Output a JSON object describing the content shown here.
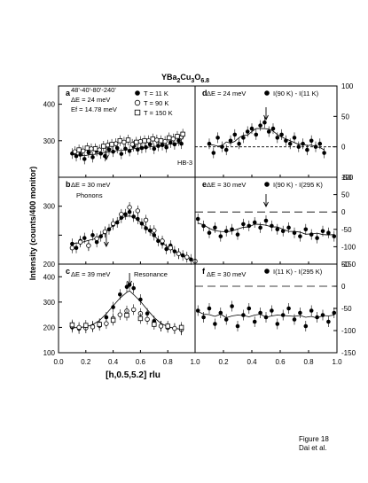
{
  "figure": {
    "title_main": "YBa",
    "title_sub1": "2",
    "title_mid": "Cu",
    "title_sub2": "3",
    "title_end": "O",
    "title_sub3": "6.8",
    "xlabel": "[h,0.5,5.2] rlu",
    "ylabel": "Intensity (counts/400 monitor)",
    "caption_line1": "Figure 18",
    "caption_line2": "Dai et al."
  },
  "chart_data": [
    {
      "panel": "a",
      "type": "scatter",
      "xlim": [
        0,
        1.0
      ],
      "ylim": [
        200,
        450
      ],
      "yticks": [
        200,
        300,
        400
      ],
      "ytick_labels": [
        "",
        "300",
        "400"
      ],
      "grid": false,
      "annotations": [
        "48'-40'-80'-240'",
        "ΔE = 24 meV",
        "Ef = 14.78 meV",
        "HB-3"
      ],
      "legend": [
        {
          "marker": "filled-circle",
          "label": "T = 11 K"
        },
        {
          "marker": "open-circle",
          "label": "T = 90 K"
        },
        {
          "marker": "open-square",
          "label": "T = 150 K"
        }
      ],
      "arrow_x": 0.35,
      "series": [
        {
          "name": "T = 11 K",
          "marker": "filled-circle",
          "x": [
            0.1,
            0.13,
            0.16,
            0.19,
            0.22,
            0.25,
            0.28,
            0.31,
            0.34,
            0.37,
            0.4,
            0.43,
            0.46,
            0.49,
            0.52,
            0.55,
            0.58,
            0.61,
            0.64,
            0.67,
            0.7,
            0.73,
            0.76,
            0.79,
            0.82,
            0.85,
            0.88,
            0.9
          ],
          "y": [
            265,
            258,
            262,
            250,
            268,
            255,
            272,
            265,
            258,
            276,
            270,
            280,
            264,
            278,
            272,
            285,
            276,
            280,
            282,
            290,
            278,
            286,
            288,
            282,
            295,
            290,
            300,
            292
          ]
        },
        {
          "name": "T = 90 K",
          "marker": "open-circle",
          "x": [
            0.12,
            0.18,
            0.24,
            0.3,
            0.36,
            0.42,
            0.48,
            0.54,
            0.6,
            0.66,
            0.72,
            0.78,
            0.84,
            0.9
          ],
          "y": [
            270,
            272,
            278,
            275,
            288,
            292,
            296,
            290,
            298,
            300,
            302,
            298,
            305,
            310
          ]
        },
        {
          "name": "T = 150 K",
          "marker": "open-square",
          "x": [
            0.15,
            0.21,
            0.27,
            0.33,
            0.39,
            0.45,
            0.51,
            0.57,
            0.63,
            0.69,
            0.75,
            0.81,
            0.87,
            0.91
          ],
          "y": [
            275,
            280,
            278,
            285,
            290,
            300,
            302,
            296,
            300,
            305,
            300,
            308,
            312,
            318
          ]
        }
      ]
    },
    {
      "panel": "b",
      "type": "scatter",
      "xlim": [
        0,
        1.0
      ],
      "ylim": [
        200,
        350
      ],
      "yticks": [
        200,
        250,
        300
      ],
      "ytick_labels": [
        "200",
        "",
        "300"
      ],
      "grid": false,
      "annotations": [
        "ΔE = 30 meV",
        "Phonons"
      ],
      "arrow_x": 0.35,
      "series": [
        {
          "name": "T = 11 K",
          "marker": "filled-circle",
          "x": [
            0.1,
            0.13,
            0.16,
            0.19,
            0.22,
            0.25,
            0.28,
            0.31,
            0.34,
            0.37,
            0.4,
            0.43,
            0.46,
            0.49,
            0.52,
            0.55,
            0.58,
            0.61,
            0.64,
            0.67,
            0.7,
            0.73,
            0.76,
            0.79,
            0.82,
            0.85,
            0.88,
            0.91,
            0.94,
            0.97
          ],
          "y": [
            235,
            228,
            240,
            245,
            232,
            250,
            238,
            248,
            255,
            260,
            268,
            272,
            280,
            286,
            290,
            282,
            278,
            270,
            262,
            258,
            250,
            240,
            236,
            226,
            232,
            222,
            218,
            215,
            212,
            208
          ]
        },
        {
          "name": "T = 90 K",
          "marker": "open-circle",
          "x": [
            0.1,
            0.16,
            0.22,
            0.28,
            0.34,
            0.4,
            0.46,
            0.52,
            0.58,
            0.64,
            0.7,
            0.76,
            0.82,
            0.88,
            0.94,
            1.0
          ],
          "y": [
            228,
            238,
            232,
            244,
            256,
            270,
            286,
            298,
            292,
            276,
            258,
            240,
            228,
            218,
            212,
            205
          ]
        }
      ]
    },
    {
      "panel": "c",
      "type": "scatter",
      "xlim": [
        0,
        1.0
      ],
      "ylim": [
        100,
        450
      ],
      "yticks": [
        100,
        200,
        300,
        400
      ],
      "ytick_labels": [
        "100",
        "200",
        "300",
        "400"
      ],
      "grid": false,
      "annotations": [
        "ΔE = 39 meV",
        "Resonance"
      ],
      "arrow_x": 0.52,
      "series": [
        {
          "name": "T = 11 K",
          "marker": "filled-circle",
          "x": [
            0.1,
            0.15,
            0.2,
            0.25,
            0.3,
            0.35,
            0.4,
            0.45,
            0.5,
            0.52,
            0.55,
            0.6,
            0.65,
            0.7,
            0.75,
            0.8,
            0.85,
            0.9
          ],
          "y": [
            200,
            195,
            198,
            205,
            215,
            240,
            280,
            330,
            360,
            368,
            355,
            310,
            255,
            225,
            205,
            200,
            195,
            190
          ]
        },
        {
          "name": "T = 90 K",
          "marker": "open-circle",
          "x": [
            0.1,
            0.15,
            0.2,
            0.25,
            0.3,
            0.35,
            0.4,
            0.45,
            0.5,
            0.55,
            0.6,
            0.65,
            0.7,
            0.75,
            0.8,
            0.85,
            0.9
          ],
          "y": [
            205,
            200,
            198,
            202,
            208,
            215,
            235,
            250,
            265,
            270,
            255,
            232,
            215,
            205,
            200,
            196,
            192
          ]
        },
        {
          "name": "T = 150 K",
          "marker": "open-square",
          "x": [
            0.1,
            0.2,
            0.3,
            0.4,
            0.5,
            0.6,
            0.7,
            0.8,
            0.9
          ],
          "y": [
            210,
            208,
            212,
            228,
            248,
            235,
            212,
            205,
            200
          ]
        }
      ]
    },
    {
      "panel": "d",
      "type": "scatter",
      "xlim": [
        0,
        1.0
      ],
      "ylim": [
        -50,
        100
      ],
      "yticks": [
        -50,
        0,
        50,
        100
      ],
      "ytick_labels": [
        "-50",
        "0",
        "50",
        "100"
      ],
      "grid": false,
      "annotations": [
        "ΔE = 24 meV"
      ],
      "legend": [
        {
          "marker": "filled-circle",
          "label": "I(90 K) - I(11 K)"
        }
      ],
      "arrow_x": 0.5,
      "series": [
        {
          "name": "I(90 K) - I(11 K)",
          "marker": "filled-circle",
          "x": [
            0.1,
            0.13,
            0.16,
            0.19,
            0.22,
            0.25,
            0.28,
            0.31,
            0.34,
            0.37,
            0.4,
            0.43,
            0.46,
            0.49,
            0.52,
            0.55,
            0.58,
            0.61,
            0.64,
            0.67,
            0.7,
            0.73,
            0.76,
            0.79,
            0.82,
            0.85,
            0.88,
            0.91
          ],
          "y": [
            5,
            -10,
            15,
            0,
            -5,
            10,
            20,
            5,
            15,
            25,
            30,
            20,
            35,
            40,
            25,
            30,
            15,
            20,
            10,
            5,
            15,
            0,
            5,
            -5,
            10,
            0,
            5,
            -10
          ]
        }
      ]
    },
    {
      "panel": "e",
      "type": "scatter",
      "xlim": [
        0,
        1.0
      ],
      "ylim": [
        -150,
        100
      ],
      "yticks": [
        -150,
        -100,
        -50,
        0,
        50,
        100
      ],
      "ytick_labels": [
        "-150",
        "-100",
        "-50",
        "0",
        "50",
        "100"
      ],
      "grid": false,
      "annotations": [
        "ΔE = 30 meV"
      ],
      "legend": [
        {
          "marker": "filled-circle",
          "label": "I(90 K) - I(295 K)"
        }
      ],
      "arrow_x": 0.5,
      "series": [
        {
          "name": "I(90 K) - I(295 K)",
          "marker": "filled-circle",
          "x": [
            0.02,
            0.06,
            0.1,
            0.14,
            0.18,
            0.22,
            0.26,
            0.3,
            0.34,
            0.38,
            0.42,
            0.46,
            0.5,
            0.54,
            0.58,
            0.62,
            0.66,
            0.7,
            0.74,
            0.78,
            0.82,
            0.86,
            0.9,
            0.94,
            0.98
          ],
          "y": [
            -20,
            -40,
            -60,
            -45,
            -70,
            -55,
            -50,
            -65,
            -35,
            -40,
            -30,
            -45,
            -25,
            -40,
            -50,
            -55,
            -45,
            -60,
            -70,
            -50,
            -65,
            -75,
            -55,
            -60,
            -70
          ]
        }
      ]
    },
    {
      "panel": "f",
      "type": "scatter",
      "xlim": [
        0,
        1.0
      ],
      "ylim": [
        -150,
        50
      ],
      "yticks": [
        -150,
        -100,
        -50,
        0,
        50
      ],
      "ytick_labels": [
        "-150",
        "-100",
        "-50",
        "0",
        "50"
      ],
      "grid": false,
      "annotations": [
        "ΔE = 30 meV"
      ],
      "legend": [
        {
          "marker": "filled-circle",
          "label": "I(11 K) - I(295 K)"
        }
      ],
      "series": [
        {
          "name": "I(11 K) - I(295 K)",
          "marker": "filled-circle",
          "x": [
            0.02,
            0.06,
            0.1,
            0.14,
            0.18,
            0.22,
            0.26,
            0.3,
            0.34,
            0.38,
            0.42,
            0.46,
            0.5,
            0.54,
            0.58,
            0.62,
            0.66,
            0.7,
            0.74,
            0.78,
            0.82,
            0.86,
            0.9,
            0.94,
            0.98
          ],
          "y": [
            -55,
            -70,
            -50,
            -85,
            -60,
            -75,
            -45,
            -90,
            -65,
            -50,
            -80,
            -60,
            -70,
            -55,
            -85,
            -65,
            -50,
            -75,
            -60,
            -90,
            -55,
            -70,
            -65,
            -80,
            -60
          ]
        }
      ]
    }
  ],
  "xaxis": {
    "ticks": [
      0.0,
      0.2,
      0.4,
      0.6,
      0.8,
      1.0
    ],
    "tick_labels": [
      "0.0",
      "0.2",
      "0.4",
      "0.6",
      "0.8",
      "1.0"
    ]
  }
}
